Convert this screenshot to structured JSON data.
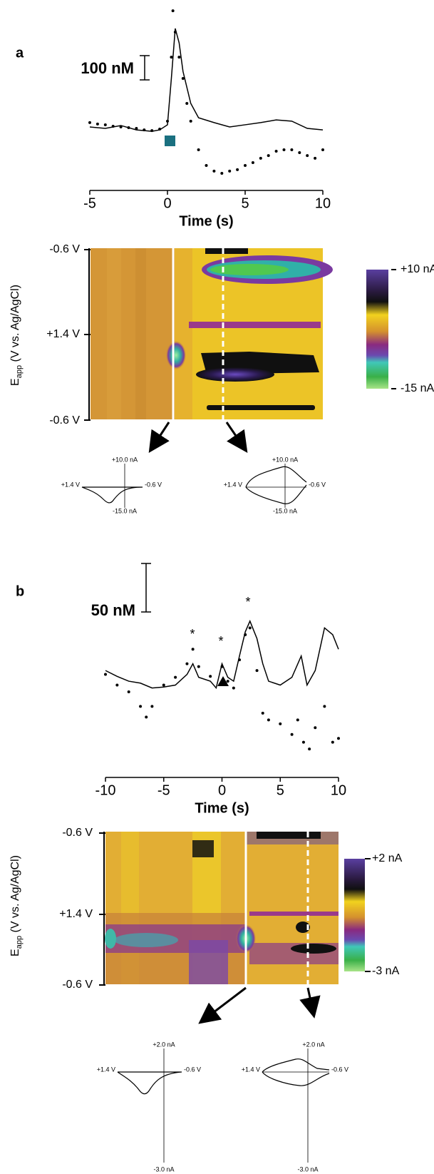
{
  "chart_data": [
    {
      "type": "line",
      "panel": "a",
      "scale_bar": "100 nM",
      "xlabel": "Time (s)",
      "xlim": [
        -5,
        10
      ],
      "xticks": [
        -5,
        0,
        5,
        10
      ],
      "ylim": [
        -250,
        500
      ],
      "series": [
        {
          "style": "line",
          "color": "#000000",
          "x": [
            -5,
            -4,
            -3,
            -2,
            -1,
            -0.5,
            0,
            0.25,
            0.5,
            0.75,
            1,
            1.5,
            2,
            3,
            4,
            5,
            6,
            7,
            8,
            9,
            10
          ],
          "values": [
            0,
            -6,
            6,
            -12,
            -18,
            -12,
            9,
            200,
            406,
            347,
            229,
            97,
            38,
            18,
            0,
            9,
            18,
            29,
            24,
            -6,
            -12
          ]
        },
        {
          "style": "dots",
          "color": "#000000",
          "x": [
            -5,
            -4.5,
            -4,
            -3.5,
            -3,
            -2.5,
            -2,
            -1.5,
            -1,
            -0.5,
            0,
            0.25,
            0.35,
            0.5,
            0.75,
            1,
            1.25,
            1.5,
            2,
            2.5,
            3,
            3.5,
            4,
            4.5,
            5,
            5.5,
            6,
            6.5,
            7,
            7.5,
            8,
            8.5,
            9,
            9.5,
            10
          ],
          "values": [
            18,
            12,
            9,
            3,
            0,
            -3,
            -6,
            -12,
            -15,
            -9,
            24,
            288,
            479,
            391,
            288,
            200,
            97,
            24,
            -94,
            -159,
            -182,
            -191,
            -182,
            -176,
            -159,
            -147,
            -129,
            -118,
            -100,
            -94,
            -94,
            -106,
            -118,
            -129,
            -94
          ]
        }
      ]
    },
    {
      "type": "line",
      "panel": "b",
      "scale_bar": "50 nM",
      "xlabel": "Time (s)",
      "annotations": [
        "*",
        "*",
        "*"
      ],
      "xlim": [
        -10,
        10
      ],
      "xticks": [
        -10,
        -5,
        0,
        5,
        10
      ],
      "ylim": [
        -100,
        70
      ],
      "series": [
        {
          "style": "line",
          "color": "#000000",
          "x": [
            -10,
            -9,
            -8,
            -7,
            -6,
            -5,
            -4,
            -3,
            -2.5,
            -2,
            -1,
            -0.5,
            0,
            0.5,
            1,
            1.5,
            2,
            2.4,
            3,
            3.5,
            4,
            5,
            6,
            6.8,
            7.3,
            8,
            8.8,
            9.5,
            10
          ],
          "values": [
            0,
            -6,
            -11,
            -13,
            -18,
            -17,
            -15,
            -4,
            7,
            -7,
            -11,
            -18,
            7,
            -7,
            -11,
            15,
            40,
            51,
            33,
            7,
            -11,
            -15,
            -7,
            15,
            -15,
            0,
            44,
            37,
            22
          ]
        },
        {
          "style": "dots",
          "color": "#000000",
          "x": [
            -10,
            -9,
            -8,
            -7,
            -6.5,
            -6,
            -5,
            -4,
            -3,
            -2.5,
            -2,
            -1,
            0,
            0.5,
            1,
            1.5,
            2,
            2.4,
            3,
            3.5,
            4,
            5,
            6,
            6.5,
            7,
            7.5,
            8,
            8.8,
            9.5,
            10
          ],
          "values": [
            -4,
            -15,
            -22,
            -37,
            -48,
            -37,
            -15,
            -7,
            7,
            22,
            4,
            -6,
            4,
            -11,
            -18,
            11,
            37,
            44,
            0,
            -44,
            -51,
            -55,
            -66,
            -51,
            -74,
            -81,
            -59,
            -37,
            -74,
            -70
          ]
        }
      ]
    }
  ],
  "heatmaps": [
    {
      "ylabel": {
        "symbol": "E",
        "subscript": "app",
        "text": " (V vs. Ag/AgCl)"
      },
      "yticks": [
        "-0.6 V",
        "+1.4 V",
        "-0.6 V"
      ],
      "colorbar": [
        "+10 nA",
        "-15 nA"
      ]
    },
    {
      "ylabel": {
        "symbol": "E",
        "subscript": "app",
        "text": " (V vs. Ag/AgCl)"
      },
      "yticks": [
        "-0.6 V",
        "+1.4 V",
        "-0.6 V"
      ],
      "colorbar": [
        "+2 nA",
        "-3 nA"
      ]
    }
  ],
  "insets": [
    {
      "top": "+10.0 nA",
      "bottom": "-15.0 nA",
      "left": "+1.4 V",
      "right": "-0.6 V"
    },
    {
      "top": "+10.0 nA",
      "bottom": "-15.0 nA",
      "left": "+1.4 V",
      "right": "-0.6 V"
    },
    {
      "top": "+2.0 nA",
      "bottom": "-3.0 nA",
      "left": "+1.4 V",
      "right": "-0.6 V"
    },
    {
      "top": "+2.0 nA",
      "bottom": "-3.0 nA",
      "left": "+1.4 V",
      "right": "-0.6 V"
    }
  ]
}
